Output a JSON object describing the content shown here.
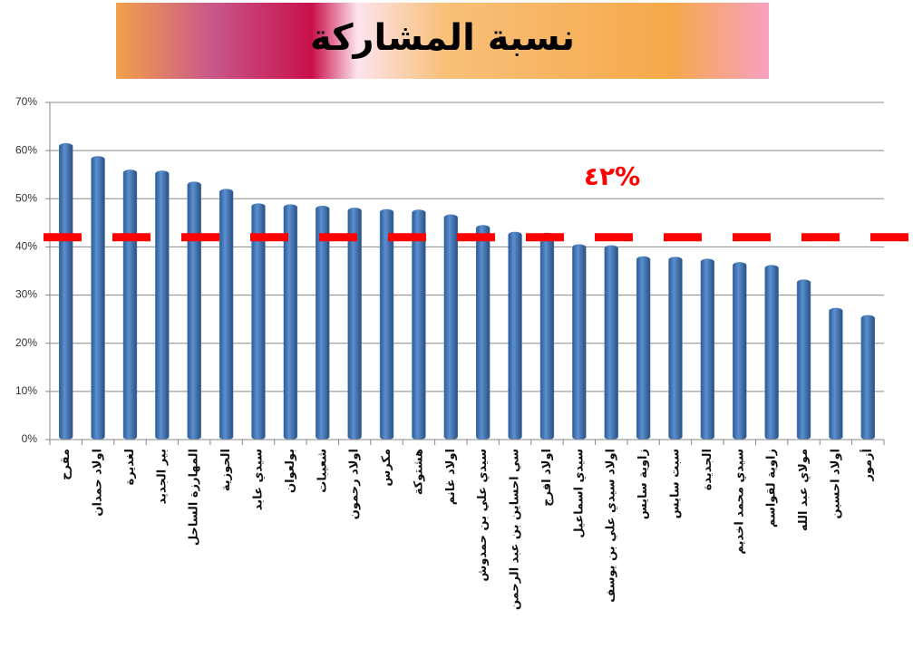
{
  "chart_data": {
    "type": "bar",
    "title": "نسبة المشاركة",
    "categories": [
      "مقرح",
      "اولاد حمدان",
      "لغديرة",
      "بير الجديد",
      "المهارزة الساحل",
      "الحوزية",
      "سيدي عابد",
      "بولعوان",
      "شعيبات",
      "اولاد رحمون",
      "مكرس",
      "هشتوكة",
      "اولاد غانم",
      "سيدي علي بن حمدوش",
      "سي احساين بن عبد الرحمن",
      "اولاد افرج",
      "سيدي اسماعيل",
      "اولاد سيدي علي بن يوسف",
      "زاوية سايس",
      "سبت سايس",
      "الجديدة",
      "سيدي محمد اخديم",
      "زاوية لقواسم",
      "مولاي عبد الله",
      "اولاد احسين",
      "أزمور"
    ],
    "values": [
      61.5,
      58.8,
      56,
      55.8,
      53.5,
      52,
      49,
      48.8,
      48.5,
      48.1,
      47.8,
      47.7,
      46.7,
      44.5,
      43.1,
      42.9,
      40.5,
      40.3,
      38,
      37.9,
      37.5,
      36.8,
      36.2,
      33.2,
      27.3,
      25.8
    ],
    "color": "#4a7ebb",
    "ylim": [
      0,
      70
    ],
    "yticks": [
      {
        "value": 0,
        "label": "0%"
      },
      {
        "value": 10,
        "label": "10%"
      },
      {
        "value": 20,
        "label": "20%"
      },
      {
        "value": 30,
        "label": "30%"
      },
      {
        "value": 40,
        "label": "40%"
      },
      {
        "value": 50,
        "label": "50%"
      },
      {
        "value": 60,
        "label": "60%"
      },
      {
        "value": 70,
        "label": "70%"
      }
    ],
    "grid": true,
    "reference_line": {
      "value": 42,
      "label": "٤٢%",
      "color": "#ff0000"
    }
  }
}
